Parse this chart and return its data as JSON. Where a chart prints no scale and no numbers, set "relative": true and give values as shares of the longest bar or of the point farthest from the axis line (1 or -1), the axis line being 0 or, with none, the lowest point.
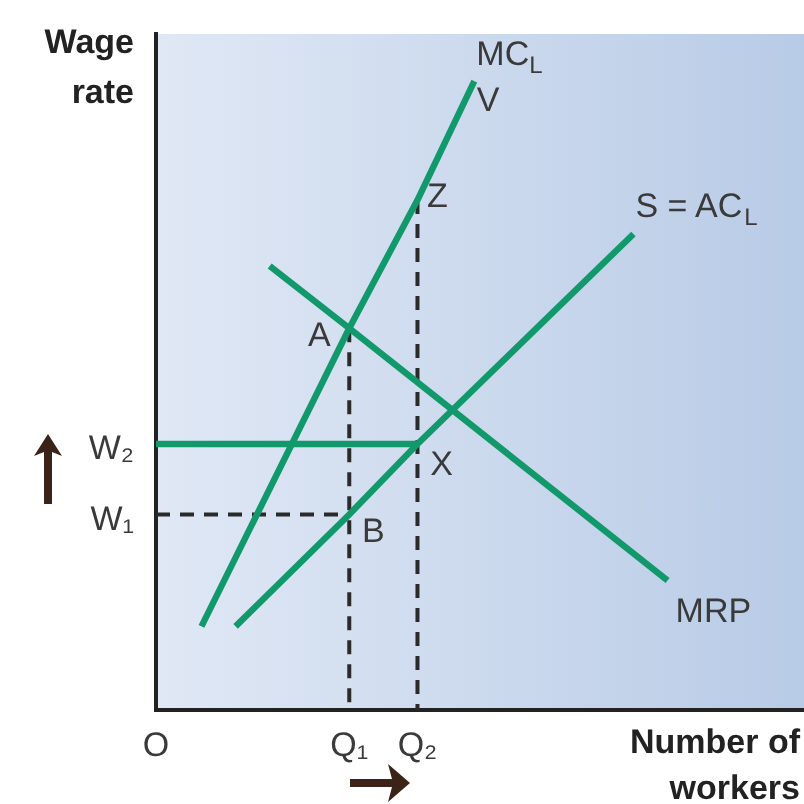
{
  "chart_data": {
    "type": "line",
    "relative": true,
    "xlabel": "Number of workers",
    "ylabel": "Wage rate",
    "categories": [
      "O",
      null,
      null,
      null,
      null,
      null,
      null,
      null,
      null,
      null,
      null,
      null,
      null,
      null,
      null,
      null,
      null,
      "Q₁",
      null,
      null,
      null,
      null,
      null,
      "Q₂",
      null,
      null,
      null,
      null,
      null,
      null,
      null,
      null,
      null,
      null,
      null,
      null,
      null,
      null,
      null,
      null,
      null,
      null,
      null,
      null,
      null,
      null,
      null,
      null,
      null,
      null,
      null,
      null,
      null,
      null,
      null,
      null,
      null,
      null
    ],
    "ylim": [
      0,
      1.075
    ],
    "series": [
      {
        "name": "MC$_{L}$",
        "color": "#12996b",
        "values": [
          null,
          null,
          null,
          null,
          0.133,
          null,
          null,
          null,
          null,
          null,
          null,
          null,
          null,
          null,
          null,
          null,
          null,
          0.607,
          null,
          null,
          null,
          null,
          null,
          0.811,
          null,
          null,
          null,
          null,
          1.0,
          null,
          null,
          null,
          null,
          null,
          null,
          null,
          null,
          null,
          null,
          null,
          null,
          null,
          null,
          null,
          null,
          null,
          null,
          null,
          null,
          null,
          null,
          null,
          null,
          null,
          null,
          null,
          null,
          null
        ]
      },
      {
        "name": "S = AC$_{L}$",
        "color": "#12996b",
        "values": [
          null,
          null,
          null,
          null,
          null,
          null,
          null,
          0.133,
          null,
          null,
          null,
          null,
          null,
          null,
          null,
          null,
          null,
          0.311,
          null,
          null,
          null,
          null,
          null,
          0.423,
          null,
          null,
          null,
          null,
          null,
          null,
          null,
          null,
          null,
          null,
          null,
          null,
          null,
          null,
          null,
          null,
          null,
          null,
          0.757,
          null,
          null,
          null,
          null,
          null,
          null,
          null,
          null,
          null,
          null,
          null,
          null,
          null,
          null,
          null
        ]
      },
      {
        "name": "MRP",
        "color": "#12996b",
        "values": [
          null,
          null,
          null,
          null,
          null,
          null,
          null,
          null,
          null,
          null,
          0.706,
          null,
          null,
          null,
          null,
          null,
          null,
          0.607,
          null,
          null,
          null,
          null,
          null,
          null,
          null,
          null,
          null,
          null,
          null,
          null,
          null,
          null,
          null,
          null,
          null,
          null,
          null,
          null,
          null,
          null,
          null,
          null,
          null,
          null,
          null,
          0.206,
          null,
          null,
          null,
          null,
          null,
          null,
          null,
          null,
          null,
          null,
          null,
          null
        ]
      },
      {
        "color": "#12996b",
        "x": [
          "O",
          "Q₂"
        ],
        "values": [
          0.423,
          0.423
        ]
      },
      {
        "color": "#2a2a2a",
        "line_style": "dashed",
        "x": [
          "O",
          "Q₁"
        ],
        "values": [
          0.311,
          0.311
        ]
      },
      {
        "color": "#2a2a2a",
        "line_style": "dashed",
        "x": [
          "Q₁",
          "Q₁"
        ],
        "values": [
          0.607,
          0
        ]
      },
      {
        "color": "#2a2a2a",
        "line_style": "dashed",
        "x": [
          "Q₂",
          "Q₂"
        ],
        "values": [
          0.811,
          0
        ]
      }
    ],
    "annotations": [
      "V",
      {
        "text": "Z",
        "x": "Q₂",
        "y": 0.811
      },
      {
        "text": "A",
        "x": "Q₁",
        "y": 0.607
      },
      {
        "text": "X",
        "x": "Q₂",
        "y": 0.423
      },
      {
        "text": "B",
        "x": "Q₁",
        "y": 0.311
      },
      {
        "text": "W₂",
        "x": "O",
        "y": 0.423
      },
      {
        "text": "W₁",
        "x": "O",
        "y": 0.311
      }
    ],
    "marker": "none",
    "legend": false
  }
}
